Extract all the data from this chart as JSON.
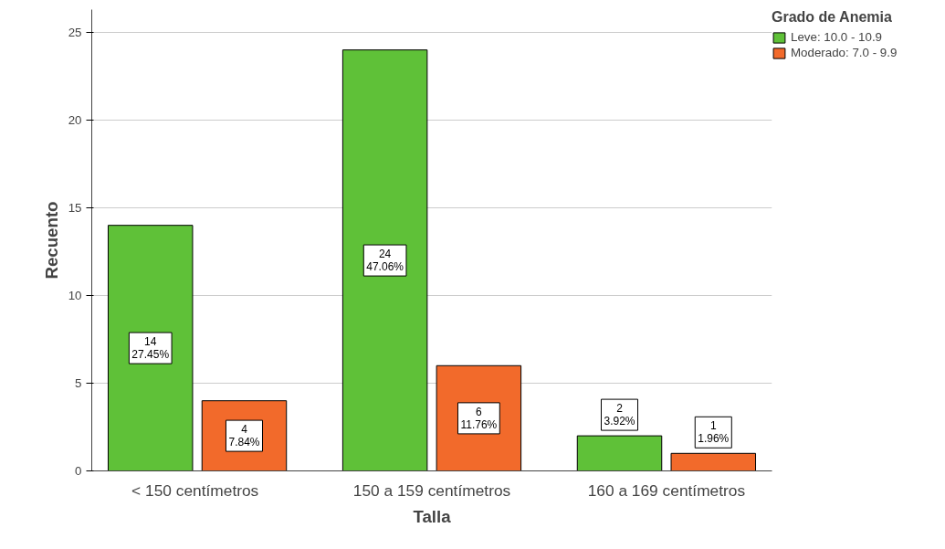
{
  "chart_data": {
    "type": "bar",
    "xlabel": "Talla",
    "ylabel": "Recuento",
    "legend_title": "Grado de Anemia",
    "categories": [
      "<  150 centímetros",
      "150 a 159 centímetros",
      "160 a 169 centímetros"
    ],
    "series": [
      {
        "name": "Leve: 10.0 - 10.9",
        "color": "#5fc138",
        "values": [
          14,
          24,
          2
        ],
        "value_labels": [
          "14\n27.45%",
          "24\n47.06%",
          "2\n3.92%"
        ]
      },
      {
        "name": "Moderado: 7.0 - 9.9",
        "color": "#f26a2b",
        "values": [
          4,
          6,
          1
        ],
        "value_labels": [
          "4\n7.84%",
          "6\n11.76%",
          "1\n1.96%"
        ]
      }
    ],
    "ylim": [
      0,
      26.3
    ],
    "yticks": [
      0,
      5,
      10,
      15,
      20,
      25
    ],
    "grid": "y",
    "legend": "right"
  }
}
